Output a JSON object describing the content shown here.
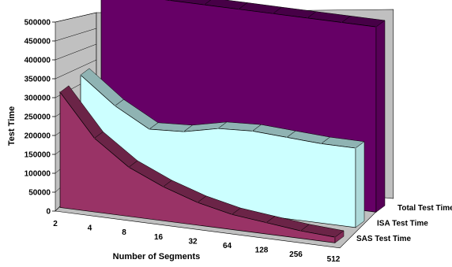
{
  "chart_data": {
    "type": "area",
    "categories": [
      "2",
      "4",
      "8",
      "16",
      "32",
      "64",
      "128",
      "256",
      "512"
    ],
    "xlabel": "Number of Segments",
    "ylabel": "Test Time",
    "ylim": [
      0,
      500000
    ],
    "yticks": [
      "0",
      "50000",
      "100000",
      "150000",
      "200000",
      "250000",
      "300000",
      "350000",
      "400000",
      "450000",
      "500000"
    ],
    "series": [
      {
        "name": "SAS Test Time",
        "values": [
          305000,
          195000,
          130000,
          90000,
          60000,
          40000,
          30000,
          20000,
          15000
        ],
        "color": "#993366"
      },
      {
        "name": "ISA Test Time",
        "values": [
          310000,
          240000,
          190000,
          195000,
          215000,
          220000,
          215000,
          210000,
          210000
        ],
        "color": "#ccffff"
      },
      {
        "name": "Total Test Time",
        "values": [
          490000,
          490000,
          490000,
          490000,
          490000,
          490000,
          490000,
          490000,
          490000
        ],
        "color": "#660066"
      }
    ],
    "grid": true,
    "legend": "none"
  }
}
